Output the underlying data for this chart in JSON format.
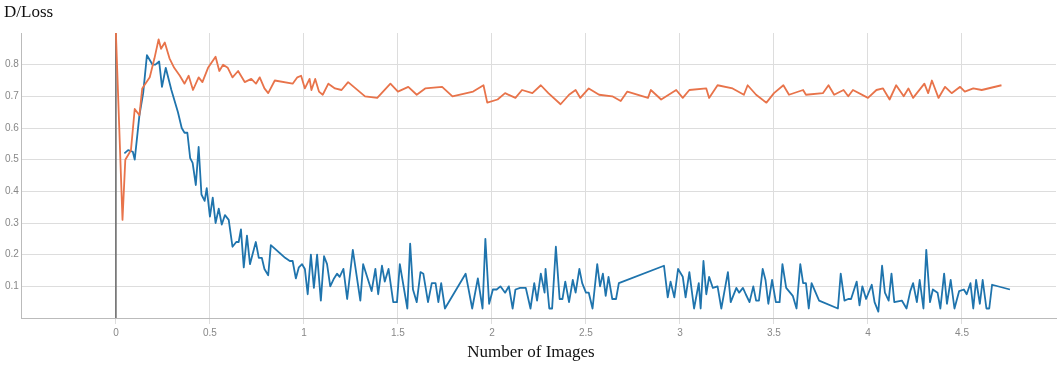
{
  "chart_data": {
    "type": "line",
    "title": "D/Loss",
    "xlabel": "Number of Images",
    "xlim": [
      -0.5,
      5
    ],
    "xticks": [
      0,
      0.5,
      1,
      1.5,
      2,
      2.5,
      3,
      3.5,
      4,
      4.5
    ],
    "ylim": [
      0,
      0.9
    ],
    "yticks": [
      0.1,
      0.2,
      0.3,
      0.4,
      0.5,
      0.6,
      0.7,
      0.8
    ],
    "grid": true,
    "legend": false,
    "marker": "none",
    "line_style": "solid",
    "ref_lines": [
      {
        "axis": "x",
        "value": 0,
        "color": "#666666"
      }
    ],
    "series": [
      {
        "color": "#e8734a",
        "x": [
          0,
          0.035,
          0.05,
          0.08,
          0.1,
          0.125,
          0.14,
          0.18,
          0.205,
          0.227,
          0.24,
          0.26,
          0.285,
          0.31,
          0.34,
          0.365,
          0.387,
          0.41,
          0.44,
          0.46,
          0.49,
          0.53,
          0.55,
          0.57,
          0.595,
          0.62,
          0.65,
          0.685,
          0.72,
          0.745,
          0.765,
          0.79,
          0.81,
          0.845,
          0.94,
          0.965,
          0.985,
          1.005,
          1.03,
          1.04,
          1.06,
          1.08,
          1.1,
          1.13,
          1.165,
          1.2,
          1.235,
          1.325,
          1.39,
          1.46,
          1.5,
          1.555,
          1.6,
          1.645,
          1.735,
          1.79,
          1.9,
          1.955,
          1.975,
          2.03,
          2.07,
          2.125,
          2.16,
          2.215,
          2.26,
          2.3,
          2.365,
          2.41,
          2.445,
          2.47,
          2.515,
          2.57,
          2.64,
          2.685,
          2.72,
          2.83,
          2.845,
          2.9,
          2.98,
          3.015,
          3.05,
          3.14,
          3.155,
          3.2,
          3.28,
          3.34,
          3.36,
          3.405,
          3.46,
          3.5,
          3.55,
          3.58,
          3.655,
          3.67,
          3.76,
          3.79,
          3.82,
          3.87,
          3.895,
          3.92,
          4.0,
          4.045,
          4.08,
          4.115,
          4.15,
          4.19,
          4.215,
          4.24,
          4.3,
          4.32,
          4.34,
          4.375,
          4.41,
          4.445,
          4.49,
          4.515,
          4.56,
          4.605,
          4.71
        ],
        "values": [
          0.9,
          0.31,
          0.5,
          0.53,
          0.66,
          0.64,
          0.725,
          0.76,
          0.82,
          0.88,
          0.85,
          0.87,
          0.82,
          0.79,
          0.765,
          0.74,
          0.765,
          0.72,
          0.76,
          0.745,
          0.79,
          0.825,
          0.78,
          0.8,
          0.79,
          0.76,
          0.78,
          0.745,
          0.755,
          0.74,
          0.76,
          0.725,
          0.71,
          0.75,
          0.74,
          0.76,
          0.765,
          0.725,
          0.755,
          0.72,
          0.755,
          0.715,
          0.705,
          0.74,
          0.725,
          0.72,
          0.745,
          0.7,
          0.695,
          0.74,
          0.715,
          0.73,
          0.705,
          0.725,
          0.73,
          0.7,
          0.715,
          0.735,
          0.68,
          0.69,
          0.71,
          0.695,
          0.72,
          0.71,
          0.735,
          0.71,
          0.675,
          0.705,
          0.72,
          0.695,
          0.725,
          0.705,
          0.7,
          0.685,
          0.715,
          0.695,
          0.72,
          0.69,
          0.72,
          0.695,
          0.72,
          0.725,
          0.695,
          0.735,
          0.725,
          0.705,
          0.735,
          0.705,
          0.68,
          0.71,
          0.735,
          0.705,
          0.72,
          0.705,
          0.71,
          0.735,
          0.705,
          0.72,
          0.7,
          0.72,
          0.695,
          0.72,
          0.725,
          0.69,
          0.735,
          0.7,
          0.725,
          0.695,
          0.74,
          0.71,
          0.75,
          0.695,
          0.73,
          0.71,
          0.73,
          0.715,
          0.725,
          0.72,
          0.735
        ]
      },
      {
        "color": "#1f74ad",
        "x": [
          0.045,
          0.065,
          0.09,
          0.1,
          0.125,
          0.145,
          0.165,
          0.195,
          0.21,
          0.23,
          0.245,
          0.265,
          0.295,
          0.33,
          0.35,
          0.365,
          0.38,
          0.395,
          0.408,
          0.425,
          0.44,
          0.455,
          0.472,
          0.483,
          0.5,
          0.515,
          0.53,
          0.547,
          0.563,
          0.58,
          0.6,
          0.62,
          0.64,
          0.653,
          0.665,
          0.68,
          0.697,
          0.713,
          0.744,
          0.76,
          0.776,
          0.79,
          0.81,
          0.824,
          0.9,
          0.925,
          0.94,
          0.957,
          0.973,
          0.99,
          1.005,
          1.02,
          1.037,
          1.053,
          1.07,
          1.09,
          1.107,
          1.123,
          1.14,
          1.16,
          1.176,
          1.19,
          1.21,
          1.23,
          1.26,
          1.3,
          1.315,
          1.36,
          1.38,
          1.395,
          1.415,
          1.43,
          1.45,
          1.475,
          1.495,
          1.51,
          1.55,
          1.565,
          1.58,
          1.6,
          1.62,
          1.635,
          1.66,
          1.68,
          1.7,
          1.715,
          1.73,
          1.75,
          1.86,
          1.895,
          1.925,
          1.95,
          1.965,
          1.985,
          2.005,
          2.025,
          2.045,
          2.07,
          2.09,
          2.11,
          2.125,
          2.15,
          2.18,
          2.205,
          2.225,
          2.24,
          2.26,
          2.28,
          2.285,
          2.305,
          2.32,
          2.34,
          2.36,
          2.375,
          2.39,
          2.41,
          2.43,
          2.445,
          2.465,
          2.48,
          2.5,
          2.515,
          2.535,
          2.56,
          2.575,
          2.59,
          2.605,
          2.62,
          2.64,
          2.66,
          2.675,
          2.915,
          2.935,
          2.95,
          2.97,
          2.99,
          3.015,
          3.03,
          3.05,
          3.075,
          3.1,
          3.11,
          3.125,
          3.14,
          3.155,
          3.175,
          3.2,
          3.22,
          3.255,
          3.27,
          3.3,
          3.315,
          3.335,
          3.35,
          3.37,
          3.39,
          3.405,
          3.42,
          3.44,
          3.455,
          3.47,
          3.49,
          3.51,
          3.53,
          3.545,
          3.565,
          3.6,
          3.62,
          3.64,
          3.655,
          3.67,
          3.685,
          3.7,
          3.74,
          3.84,
          3.855,
          3.875,
          3.895,
          3.91,
          3.94,
          3.955,
          3.97,
          3.99,
          4.02,
          4.035,
          4.055,
          4.075,
          4.09,
          4.11,
          4.125,
          4.14,
          4.18,
          4.205,
          4.225,
          4.24,
          4.26,
          4.275,
          4.295,
          4.31,
          4.33,
          4.345,
          4.37,
          4.385,
          4.405,
          4.42,
          4.44,
          4.46,
          4.485,
          4.51,
          4.525,
          4.545,
          4.56,
          4.575,
          4.595,
          4.61,
          4.63,
          4.645,
          4.66,
          4.755
        ],
        "values": [
          0.52,
          0.53,
          0.525,
          0.5,
          0.64,
          0.71,
          0.83,
          0.8,
          0.8,
          0.81,
          0.73,
          0.79,
          0.72,
          0.65,
          0.6,
          0.585,
          0.585,
          0.505,
          0.49,
          0.42,
          0.54,
          0.39,
          0.37,
          0.41,
          0.32,
          0.38,
          0.3,
          0.345,
          0.295,
          0.325,
          0.31,
          0.225,
          0.24,
          0.24,
          0.28,
          0.16,
          0.26,
          0.17,
          0.24,
          0.19,
          0.19,
          0.155,
          0.135,
          0.23,
          0.19,
          0.18,
          0.18,
          0.125,
          0.16,
          0.17,
          0.155,
          0.075,
          0.2,
          0.095,
          0.2,
          0.055,
          0.195,
          0.17,
          0.1,
          0.125,
          0.14,
          0.13,
          0.155,
          0.06,
          0.215,
          0.055,
          0.17,
          0.085,
          0.155,
          0.075,
          0.165,
          0.115,
          0.155,
          0.05,
          0.05,
          0.17,
          0.03,
          0.235,
          0.09,
          0.05,
          0.145,
          0.14,
          0.05,
          0.11,
          0.11,
          0.05,
          0.11,
          0.03,
          0.14,
          0.03,
          0.125,
          0.03,
          0.25,
          0.045,
          0.09,
          0.09,
          0.1,
          0.08,
          0.1,
          0.03,
          0.09,
          0.095,
          0.095,
          0.03,
          0.11,
          0.055,
          0.14,
          0.08,
          0.155,
          0.03,
          0.03,
          0.225,
          0.06,
          0.06,
          0.115,
          0.05,
          0.12,
          0.08,
          0.155,
          0.11,
          0.08,
          0.08,
          0.03,
          0.17,
          0.1,
          0.14,
          0.07,
          0.13,
          0.06,
          0.06,
          0.11,
          0.165,
          0.065,
          0.115,
          0.065,
          0.155,
          0.13,
          0.065,
          0.145,
          0.03,
          0.11,
          0.03,
          0.18,
          0.075,
          0.13,
          0.095,
          0.1,
          0.03,
          0.145,
          0.05,
          0.095,
          0.08,
          0.095,
          0.075,
          0.05,
          0.1,
          0.055,
          0.055,
          0.155,
          0.12,
          0.045,
          0.12,
          0.05,
          0.05,
          0.17,
          0.095,
          0.07,
          0.03,
          0.17,
          0.11,
          0.11,
          0.03,
          0.11,
          0.055,
          0.03,
          0.14,
          0.055,
          0.06,
          0.06,
          0.115,
          0.04,
          0.1,
          0.06,
          0.105,
          0.05,
          0.02,
          0.165,
          0.08,
          0.055,
          0.14,
          0.05,
          0.055,
          0.03,
          0.085,
          0.11,
          0.05,
          0.12,
          0.03,
          0.215,
          0.05,
          0.09,
          0.08,
          0.03,
          0.14,
          0.045,
          0.12,
          0.03,
          0.085,
          0.09,
          0.075,
          0.11,
          0.03,
          0.12,
          0.045,
          0.12,
          0.03,
          0.03,
          0.105,
          0.09
        ]
      }
    ]
  }
}
